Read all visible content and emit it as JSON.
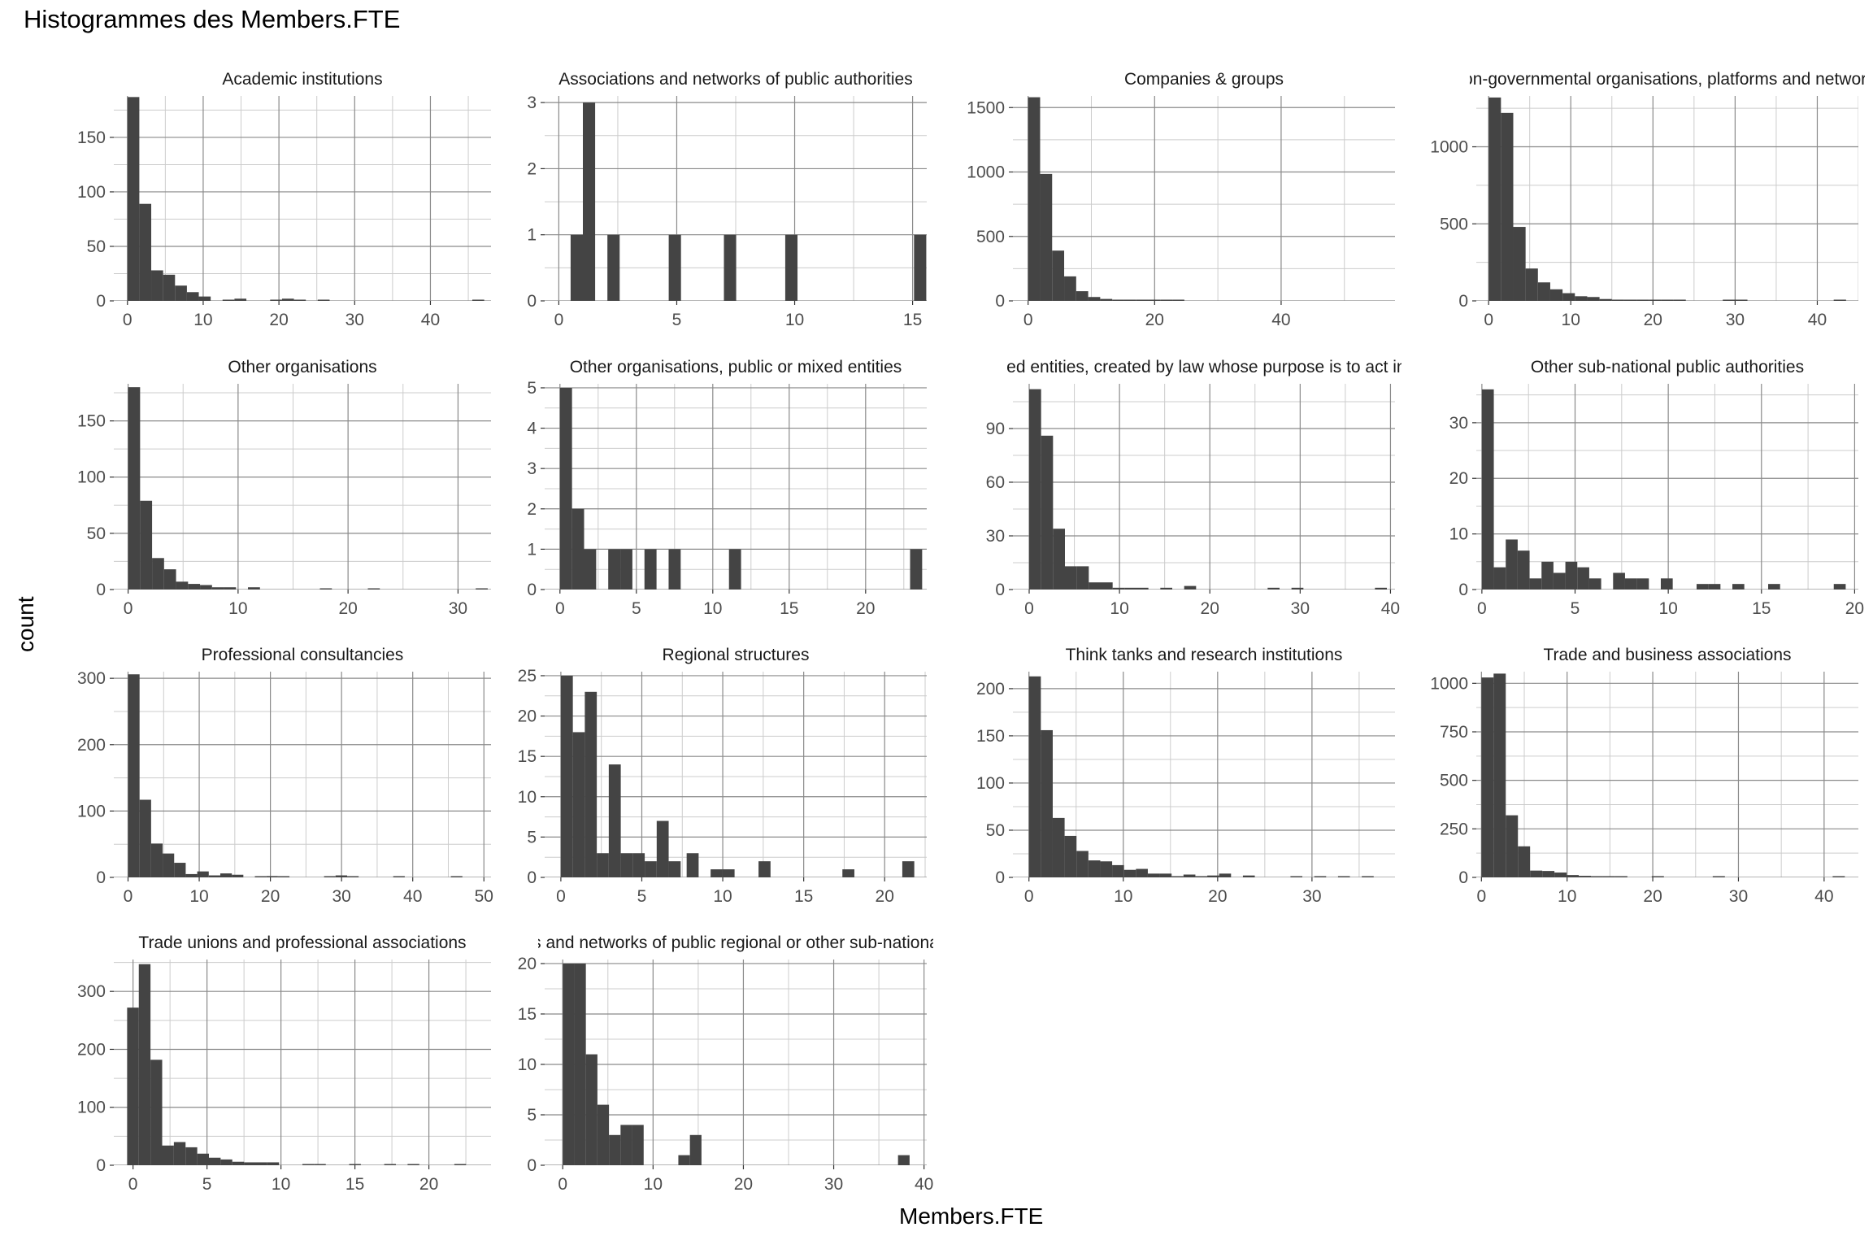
{
  "chart_data": {
    "type": "bar",
    "title": "Histogrammes des Members.FTE",
    "xlabel": "Members.FTE",
    "ylabel": "count",
    "bar_color": "#444444",
    "grid_color": "#8a8a8a",
    "minor_grid_color": "#cccccc",
    "panels": [
      {
        "title": "Academic institutions",
        "xlim": [
          -1.8,
          48
        ],
        "ylim": [
          0,
          188
        ],
        "xticks": [
          0,
          10,
          20,
          30,
          40
        ],
        "yticks": [
          0,
          50,
          100,
          150
        ],
        "bin_width": 1.57,
        "bins": [
          [
            0,
            187
          ],
          [
            1.57,
            89
          ],
          [
            3.14,
            28
          ],
          [
            4.71,
            24
          ],
          [
            6.28,
            14
          ],
          [
            7.85,
            8
          ],
          [
            9.42,
            4
          ],
          [
            10.99,
            0
          ],
          [
            12.56,
            1
          ],
          [
            14.13,
            2
          ],
          [
            15.7,
            0
          ],
          [
            17.27,
            0
          ],
          [
            18.84,
            1
          ],
          [
            20.41,
            2
          ],
          [
            21.98,
            1
          ],
          [
            23.55,
            0
          ],
          [
            25.12,
            1
          ],
          [
            26.69,
            0
          ],
          [
            28.26,
            0
          ],
          [
            29.83,
            0
          ],
          [
            45.53,
            1
          ]
        ]
      },
      {
        "title": "Associations and networks of public authorities",
        "xlim": [
          -0.6,
          15.6
        ],
        "ylim": [
          0,
          3.1
        ],
        "xticks": [
          0,
          5,
          10,
          15
        ],
        "yticks": [
          0,
          1,
          2,
          3
        ],
        "bin_width": 0.52,
        "bins": [
          [
            0.5,
            1
          ],
          [
            1.02,
            3
          ],
          [
            2.06,
            1
          ],
          [
            4.66,
            1
          ],
          [
            7.0,
            1
          ],
          [
            9.6,
            1
          ],
          [
            15.06,
            1
          ]
        ]
      },
      {
        "title": "Companies & groups",
        "xlim": [
          -2.4,
          58
        ],
        "ylim": [
          0,
          1590
        ],
        "xticks": [
          0,
          20,
          40
        ],
        "yticks": [
          0,
          500,
          1000,
          1500
        ],
        "bin_width": 1.9,
        "bins": [
          [
            0,
            1580
          ],
          [
            1.9,
            985
          ],
          [
            3.8,
            390
          ],
          [
            5.7,
            190
          ],
          [
            7.6,
            75
          ],
          [
            9.5,
            30
          ],
          [
            11.4,
            15
          ],
          [
            13.3,
            6
          ],
          [
            15.2,
            4
          ],
          [
            17.1,
            3
          ],
          [
            19.0,
            2
          ],
          [
            20.9,
            2
          ],
          [
            22.8,
            1
          ]
        ]
      },
      {
        "title": "Non-governmental organisations, platforms and networks",
        "xlim": [
          -1.5,
          45
        ],
        "ylim": [
          0,
          1330
        ],
        "xticks": [
          0,
          10,
          20,
          30,
          40
        ],
        "yticks": [
          0,
          500,
          1000
        ],
        "bin_width": 1.5,
        "bins": [
          [
            0,
            1320
          ],
          [
            1.5,
            1220
          ],
          [
            3.0,
            480
          ],
          [
            4.5,
            210
          ],
          [
            6.0,
            120
          ],
          [
            7.5,
            75
          ],
          [
            9.0,
            50
          ],
          [
            10.5,
            30
          ],
          [
            12.0,
            25
          ],
          [
            13.5,
            12
          ],
          [
            15.0,
            8
          ],
          [
            16.5,
            6
          ],
          [
            18.0,
            5
          ],
          [
            19.5,
            3
          ],
          [
            21.0,
            2
          ],
          [
            22.5,
            2
          ],
          [
            28.5,
            2
          ],
          [
            30.0,
            1
          ],
          [
            42.0,
            1
          ]
        ]
      },
      {
        "title": "Other organisations",
        "xlim": [
          -1.3,
          33
        ],
        "ylim": [
          0,
          183
        ],
        "xticks": [
          0,
          10,
          20,
          30
        ],
        "yticks": [
          0,
          50,
          100,
          150
        ],
        "bin_width": 1.09,
        "bins": [
          [
            0,
            180
          ],
          [
            1.09,
            79
          ],
          [
            2.18,
            28
          ],
          [
            3.27,
            18
          ],
          [
            4.36,
            7
          ],
          [
            5.45,
            5
          ],
          [
            6.54,
            4
          ],
          [
            7.63,
            2
          ],
          [
            8.72,
            2
          ],
          [
            10.9,
            2
          ],
          [
            17.44,
            1
          ],
          [
            21.8,
            1
          ],
          [
            31.61,
            1
          ]
        ]
      },
      {
        "title": "Other organisations, public or mixed entities",
        "xlim": [
          -1,
          24
        ],
        "ylim": [
          0,
          5.1
        ],
        "xticks": [
          0,
          5,
          10,
          15,
          20
        ],
        "yticks": [
          0,
          1,
          2,
          3,
          4,
          5
        ],
        "bin_width": 0.79,
        "bins": [
          [
            0,
            5
          ],
          [
            0.79,
            2
          ],
          [
            1.58,
            1
          ],
          [
            3.16,
            1
          ],
          [
            3.95,
            1
          ],
          [
            5.53,
            1
          ],
          [
            7.11,
            1
          ],
          [
            11.06,
            1
          ],
          [
            22.91,
            1
          ]
        ]
      },
      {
        "title": "Other public or mixed entities, created by law whose purpose is to act in the public interest",
        "xlim": [
          -1.8,
          40.5
        ],
        "ylim": [
          0,
          115
        ],
        "xticks": [
          0,
          10,
          20,
          30,
          40
        ],
        "yticks": [
          0,
          30,
          60,
          90
        ],
        "bin_width": 1.32,
        "bins": [
          [
            0,
            112
          ],
          [
            1.32,
            86
          ],
          [
            2.64,
            34
          ],
          [
            3.96,
            13
          ],
          [
            5.28,
            13
          ],
          [
            6.6,
            4
          ],
          [
            7.92,
            4
          ],
          [
            9.24,
            1
          ],
          [
            10.56,
            1
          ],
          [
            11.88,
            1
          ],
          [
            14.52,
            1
          ],
          [
            17.16,
            2
          ],
          [
            26.4,
            1
          ],
          [
            29.04,
            1
          ],
          [
            38.28,
            1
          ]
        ]
      },
      {
        "title": "Other sub-national public authorities",
        "xlim": [
          -0.3,
          20.2
        ],
        "ylim": [
          0,
          37
        ],
        "xticks": [
          0,
          5,
          10,
          15,
          20
        ],
        "yticks": [
          0,
          10,
          20,
          30
        ],
        "bin_width": 0.64,
        "bins": [
          [
            0,
            36
          ],
          [
            0.64,
            4
          ],
          [
            1.28,
            9
          ],
          [
            1.92,
            7
          ],
          [
            2.56,
            2
          ],
          [
            3.2,
            5
          ],
          [
            3.84,
            3
          ],
          [
            4.48,
            5
          ],
          [
            5.12,
            4
          ],
          [
            5.76,
            2
          ],
          [
            7.04,
            3
          ],
          [
            7.68,
            2
          ],
          [
            8.32,
            2
          ],
          [
            9.6,
            2
          ],
          [
            11.52,
            1
          ],
          [
            12.16,
            1
          ],
          [
            13.44,
            1
          ],
          [
            15.36,
            1
          ],
          [
            18.88,
            1
          ]
        ]
      },
      {
        "title": "Professional consultancies",
        "xlim": [
          -2,
          51
        ],
        "ylim": [
          0,
          310
        ],
        "xticks": [
          0,
          10,
          20,
          30,
          40,
          50
        ],
        "yticks": [
          0,
          100,
          200,
          300
        ],
        "bin_width": 1.62,
        "bins": [
          [
            0,
            306
          ],
          [
            1.62,
            117
          ],
          [
            3.24,
            51
          ],
          [
            4.86,
            36
          ],
          [
            6.48,
            22
          ],
          [
            8.1,
            5
          ],
          [
            9.72,
            9
          ],
          [
            11.34,
            3
          ],
          [
            12.96,
            6
          ],
          [
            14.58,
            4
          ],
          [
            17.82,
            1
          ],
          [
            19.44,
            2
          ],
          [
            21.06,
            1
          ],
          [
            27.54,
            1
          ],
          [
            29.16,
            3
          ],
          [
            30.78,
            1
          ],
          [
            37.26,
            1
          ],
          [
            45.36,
            1
          ]
        ]
      },
      {
        "title": "Regional structures",
        "xlim": [
          -1,
          22.6
        ],
        "ylim": [
          0,
          25.5
        ],
        "xticks": [
          0,
          5,
          10,
          15,
          20
        ],
        "yticks": [
          0,
          5,
          10,
          15,
          20,
          25
        ],
        "bin_width": 0.74,
        "bins": [
          [
            0,
            25
          ],
          [
            0.74,
            18
          ],
          [
            1.48,
            23
          ],
          [
            2.22,
            3
          ],
          [
            2.96,
            14
          ],
          [
            3.7,
            3
          ],
          [
            4.44,
            3
          ],
          [
            5.18,
            2
          ],
          [
            5.92,
            7
          ],
          [
            6.66,
            2
          ],
          [
            7.77,
            3
          ],
          [
            9.25,
            1
          ],
          [
            9.99,
            1
          ],
          [
            12.21,
            2
          ],
          [
            17.39,
            1
          ],
          [
            21.09,
            2
          ]
        ]
      },
      {
        "title": "Think tanks and research institutions",
        "xlim": [
          -1.7,
          38.8
        ],
        "ylim": [
          0,
          218
        ],
        "xticks": [
          0,
          10,
          20,
          30
        ],
        "yticks": [
          0,
          50,
          100,
          150,
          200
        ],
        "bin_width": 1.26,
        "bins": [
          [
            0,
            213
          ],
          [
            1.26,
            156
          ],
          [
            2.52,
            63
          ],
          [
            3.78,
            44
          ],
          [
            5.04,
            28
          ],
          [
            6.3,
            18
          ],
          [
            7.56,
            17
          ],
          [
            8.82,
            13
          ],
          [
            10.08,
            8
          ],
          [
            11.34,
            9
          ],
          [
            12.6,
            4
          ],
          [
            13.86,
            4
          ],
          [
            15.12,
            1
          ],
          [
            16.38,
            3
          ],
          [
            17.64,
            1
          ],
          [
            18.9,
            2
          ],
          [
            20.16,
            4
          ],
          [
            22.68,
            2
          ],
          [
            27.72,
            1
          ],
          [
            30.24,
            1
          ],
          [
            32.76,
            1
          ],
          [
            35.28,
            1
          ]
        ]
      },
      {
        "title": "Trade and business associations",
        "xlim": [
          -0.6,
          44
        ],
        "ylim": [
          0,
          1060
        ],
        "xticks": [
          0,
          10,
          20,
          30,
          40
        ],
        "yticks": [
          0,
          250,
          500,
          750,
          1000
        ],
        "bin_width": 1.42,
        "bins": [
          [
            0,
            1030
          ],
          [
            1.42,
            1050
          ],
          [
            2.84,
            320
          ],
          [
            4.26,
            160
          ],
          [
            5.68,
            35
          ],
          [
            7.1,
            33
          ],
          [
            8.52,
            25
          ],
          [
            9.94,
            12
          ],
          [
            11.36,
            8
          ],
          [
            12.78,
            4
          ],
          [
            14.2,
            3
          ],
          [
            15.62,
            2
          ],
          [
            19.88,
            2
          ],
          [
            27.0,
            1
          ],
          [
            41.0,
            1
          ]
        ]
      },
      {
        "title": "Trade unions and professional associations",
        "xlim": [
          -1.3,
          24.2
        ],
        "ylim": [
          0,
          355
        ],
        "xticks": [
          0,
          5,
          10,
          15,
          20
        ],
        "yticks": [
          0,
          100,
          200,
          300
        ],
        "bin_width": 0.79,
        "bins": [
          [
            -0.4,
            272
          ],
          [
            0.39,
            347
          ],
          [
            1.18,
            182
          ],
          [
            1.97,
            34
          ],
          [
            2.76,
            40
          ],
          [
            3.55,
            31
          ],
          [
            4.34,
            20
          ],
          [
            5.13,
            13
          ],
          [
            5.92,
            10
          ],
          [
            6.71,
            6
          ],
          [
            7.5,
            5
          ],
          [
            8.29,
            5
          ],
          [
            9.08,
            5
          ],
          [
            11.45,
            2
          ],
          [
            12.24,
            1
          ],
          [
            14.61,
            1
          ],
          [
            16.98,
            1
          ],
          [
            18.56,
            1
          ],
          [
            21.72,
            1
          ]
        ]
      },
      {
        "title": "Associations and networks of public regional or other sub-national authorities",
        "xlim": [
          -2,
          40.3
        ],
        "ylim": [
          0,
          20.4
        ],
        "xticks": [
          0,
          10,
          20,
          30,
          40
        ],
        "yticks": [
          0,
          5,
          10,
          15,
          20
        ],
        "bin_width": 1.28,
        "bins": [
          [
            0,
            20
          ],
          [
            1.28,
            20
          ],
          [
            2.56,
            11
          ],
          [
            3.84,
            6
          ],
          [
            5.12,
            3
          ],
          [
            6.4,
            4
          ],
          [
            7.68,
            4
          ],
          [
            12.8,
            1
          ],
          [
            14.08,
            3
          ],
          [
            37.12,
            1
          ]
        ]
      }
    ]
  }
}
